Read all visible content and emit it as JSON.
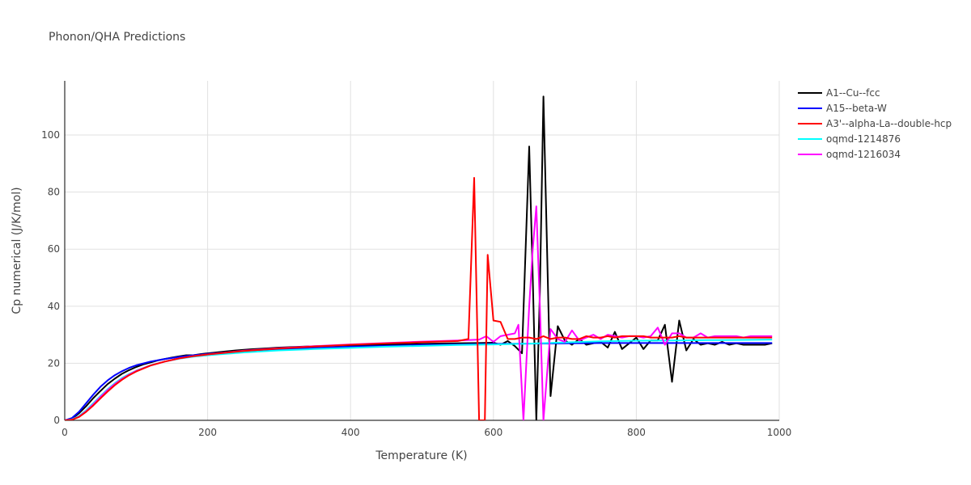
{
  "chart_data": {
    "type": "line",
    "title": "Phonon/QHA Predictions",
    "xlabel": "Temperature (K)",
    "ylabel": "Cp numerical (J/K/mol)",
    "xlim": [
      0,
      1000
    ],
    "ylim": [
      0,
      119
    ],
    "xticks": [
      0,
      200,
      400,
      600,
      800,
      1000
    ],
    "yticks": [
      0,
      20,
      40,
      60,
      80,
      100
    ],
    "grid": true,
    "legend_position": "top-right",
    "series": [
      {
        "name": "A1--Cu--fcc",
        "color": "#000000",
        "x": [
          0,
          10,
          20,
          30,
          40,
          50,
          60,
          70,
          80,
          90,
          100,
          110,
          120,
          130,
          140,
          150,
          160,
          170,
          180,
          190,
          200,
          220,
          240,
          260,
          280,
          300,
          340,
          380,
          420,
          460,
          500,
          540,
          580,
          600,
          610,
          620,
          630,
          640,
          650,
          655,
          660,
          665,
          670,
          680,
          690,
          700,
          710,
          720,
          730,
          740,
          750,
          760,
          770,
          780,
          790,
          800,
          810,
          820,
          830,
          840,
          850,
          860,
          870,
          880,
          890,
          900,
          910,
          920,
          930,
          940,
          950,
          960,
          970,
          980,
          990
        ],
        "y": [
          0,
          0.6,
          2.5,
          5,
          7.8,
          10.3,
          12.7,
          14.6,
          16.3,
          17.6,
          18.7,
          19.6,
          20.3,
          21,
          21.5,
          22,
          22.4,
          22.8,
          22.8,
          23.2,
          23.5,
          24,
          24.5,
          24.9,
          25.2,
          25.5,
          25.9,
          26.2,
          26.4,
          26.6,
          26.8,
          27,
          27.1,
          27.2,
          26.5,
          27.8,
          26,
          23.5,
          96,
          50,
          0,
          45,
          113.5,
          8.5,
          33,
          28,
          26.5,
          28.5,
          26.5,
          27,
          27.5,
          25.5,
          31,
          25,
          27,
          29,
          25,
          28,
          28,
          33.5,
          13.5,
          35,
          24.5,
          28.5,
          26.5,
          27,
          26.5,
          27.5,
          26.5,
          27,
          26.5,
          26.5,
          26.5,
          26.5,
          27
        ]
      },
      {
        "name": "A15--beta-W",
        "color": "#0000ff",
        "x": [
          0,
          10,
          20,
          30,
          40,
          50,
          60,
          70,
          80,
          90,
          100,
          120,
          140,
          160,
          180,
          200,
          250,
          300,
          350,
          400,
          450,
          500,
          550,
          600,
          650,
          700,
          750,
          800,
          850,
          900,
          950,
          990
        ],
        "y": [
          0,
          0.8,
          3,
          6,
          9,
          11.8,
          14,
          15.8,
          17.2,
          18.4,
          19.3,
          20.6,
          21.5,
          22.2,
          22.8,
          23.3,
          24.2,
          24.9,
          25.4,
          25.8,
          26.1,
          26.4,
          26.6,
          26.8,
          26.9,
          27,
          27.1,
          27.1,
          27.1,
          27.1,
          27.1,
          27.1
        ]
      },
      {
        "name": "A3'--alpha-La--double-hcp",
        "color": "#ff0000",
        "x": [
          0,
          10,
          20,
          30,
          40,
          50,
          60,
          70,
          80,
          90,
          100,
          120,
          140,
          160,
          180,
          200,
          250,
          300,
          350,
          400,
          450,
          500,
          550,
          565,
          573,
          580,
          588,
          592,
          600,
          610,
          620,
          630,
          640,
          650,
          660,
          670,
          680,
          690,
          700,
          710,
          720,
          730,
          740,
          750,
          760,
          770,
          780,
          790,
          800,
          810,
          820,
          830,
          840,
          850,
          860,
          870,
          880,
          890,
          900,
          910,
          920,
          930,
          940,
          950,
          960,
          970,
          980,
          990
        ],
        "y": [
          0,
          0.2,
          1.2,
          3,
          5.2,
          7.7,
          10.1,
          12.3,
          14.2,
          15.8,
          17.1,
          19.2,
          20.6,
          21.7,
          22.5,
          23.1,
          24.3,
          25.2,
          25.9,
          26.5,
          27,
          27.4,
          27.8,
          28.5,
          85,
          0,
          0,
          58,
          35,
          34.5,
          28.5,
          28.5,
          29,
          29,
          28.5,
          29.5,
          28.5,
          29,
          29,
          28.5,
          28.5,
          29.5,
          29,
          29,
          29.5,
          29,
          29.5,
          29.5,
          29.5,
          29.5,
          29,
          29,
          29,
          29,
          29.5,
          29,
          29,
          29,
          29,
          29,
          29,
          29,
          29,
          29,
          29,
          29,
          29,
          29
        ]
      },
      {
        "name": "oqmd-1214876",
        "color": "#00ffff",
        "x": [
          0,
          10,
          20,
          30,
          40,
          50,
          60,
          70,
          80,
          90,
          100,
          120,
          140,
          160,
          180,
          200,
          250,
          300,
          350,
          400,
          450,
          500,
          550,
          600,
          650,
          700,
          750,
          800,
          850,
          900,
          950,
          990
        ],
        "y": [
          0,
          0.3,
          1.5,
          3.5,
          6,
          8.5,
          10.9,
          13,
          14.8,
          16.2,
          17.4,
          19.3,
          20.6,
          21.6,
          22.3,
          22.8,
          23.8,
          24.5,
          25,
          25.4,
          25.8,
          26.1,
          26.4,
          26.6,
          26.9,
          27.3,
          27.7,
          27.9,
          28,
          28.1,
          28.2,
          28.3
        ]
      },
      {
        "name": "oqmd-1216034",
        "color": "#ff00ff",
        "x": [
          0,
          10,
          20,
          30,
          40,
          50,
          60,
          70,
          80,
          90,
          100,
          120,
          140,
          160,
          180,
          200,
          250,
          300,
          350,
          400,
          450,
          500,
          550,
          580,
          590,
          600,
          610,
          620,
          630,
          635,
          642,
          650,
          655,
          660,
          665,
          670,
          680,
          690,
          700,
          710,
          720,
          730,
          740,
          750,
          760,
          770,
          780,
          790,
          800,
          810,
          820,
          830,
          840,
          850,
          860,
          870,
          880,
          890,
          900,
          910,
          920,
          930,
          940,
          950,
          960,
          970,
          980,
          990
        ],
        "y": [
          0,
          0.2,
          1.3,
          3.2,
          5.6,
          8.2,
          10.6,
          12.7,
          14.5,
          16,
          17.3,
          19.2,
          20.6,
          21.7,
          22.5,
          23.1,
          24.4,
          25.3,
          26,
          26.6,
          27.1,
          27.6,
          28,
          28.3,
          29.5,
          27.5,
          29.5,
          30,
          30.5,
          33.5,
          0,
          40,
          60,
          75,
          40,
          0,
          32,
          28.5,
          27.5,
          31.5,
          28,
          29,
          30,
          28.5,
          30,
          29.5,
          29,
          29.5,
          29.5,
          29,
          29.5,
          32.5,
          26.5,
          30.5,
          30.5,
          29,
          29,
          30.5,
          29,
          29.5,
          29.5,
          29.5,
          29.5,
          29,
          29.5,
          29.5,
          29.5,
          29.5
        ]
      }
    ]
  }
}
